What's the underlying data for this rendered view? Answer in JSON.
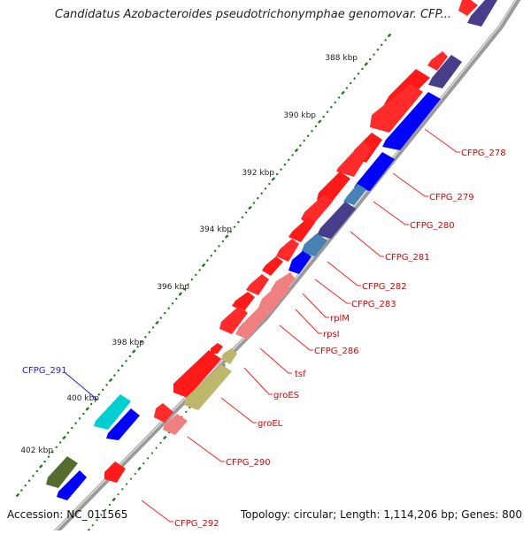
{
  "header": {
    "title": "Candidatus Azobacteroides pseudotrichonymphae genomovar. CFP..."
  },
  "footer": {
    "accession": "Accession: NC_011565",
    "summary": "Topology: circular; Length: 1,114,206 bp; Genes: 800"
  },
  "ticks": [
    "388 kbp",
    "390 kbp",
    "392 kbp",
    "394 kbp",
    "396 kbp",
    "398 kbp",
    "400 kbp",
    "402 kbp"
  ],
  "genes": {
    "forward": [
      {
        "label": "CFPG_278",
        "color": "#ff0000"
      },
      {
        "label": "CFPG_279",
        "color": "#ff0000"
      },
      {
        "label": "CFPG_280",
        "color": "#ff0000"
      },
      {
        "label": "CFPG_281",
        "color": "#ff0000"
      },
      {
        "label": "CFPG_282",
        "color": "#ff0000"
      },
      {
        "label": "CFPG_283",
        "color": "#ff0000"
      },
      {
        "label": "rplM",
        "color": "#ff0000"
      },
      {
        "label": "rpsI",
        "color": "#ff0000"
      },
      {
        "label": "CFPG_286",
        "color": "#ff0000"
      },
      {
        "label": "tsf",
        "color": "#ff0000"
      },
      {
        "label": "groES",
        "color": "#ff0000"
      },
      {
        "label": "groEL",
        "color": "#ff0000"
      },
      {
        "label": "CFPG_290",
        "color": "#ff0000"
      },
      {
        "label": "CFPG_292",
        "color": "#ff0000"
      }
    ],
    "reverse": [
      {
        "label": "CFPG_291",
        "color": "#0000ff"
      }
    ]
  },
  "colors": {
    "forward_cds": "#ff0000",
    "forward_cog": "#f08080",
    "reverse_cds": "#0000ff",
    "reverse_cog_dark": "#483d8b",
    "reverse_cog_cyan": "#00ced1",
    "cog_khaki": "#bdb76b",
    "cog_olive": "#556b2f",
    "backbone": "#888888",
    "tick": "#1a7a1a"
  }
}
